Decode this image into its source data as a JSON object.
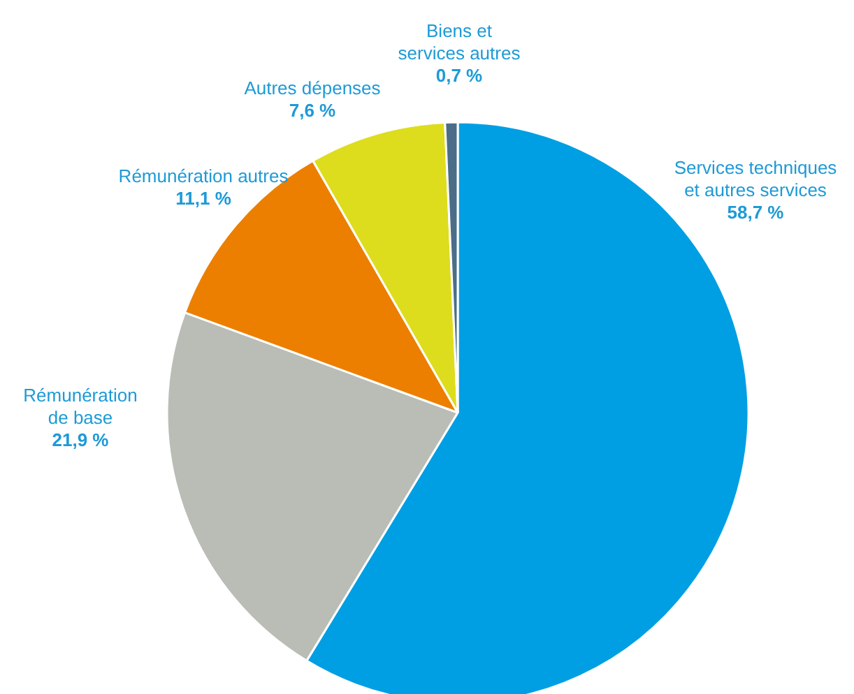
{
  "chart_data": {
    "type": "pie",
    "categories": [
      "Services techniques\net autres services",
      "Rémunération\nde base",
      "Rémunération autres",
      "Autres dépenses",
      "Biens et\nservices autres"
    ],
    "values": [
      58.7,
      21.9,
      11.1,
      7.6,
      0.7
    ],
    "colors": [
      "#009fe3",
      "#b9bdb6",
      "#ec7f00",
      "#dddd1e",
      "#4b6d88"
    ],
    "value_labels": [
      "58,7 %",
      "21,9 %",
      "11,1 %",
      "7,6 %",
      "0,7 %"
    ]
  }
}
